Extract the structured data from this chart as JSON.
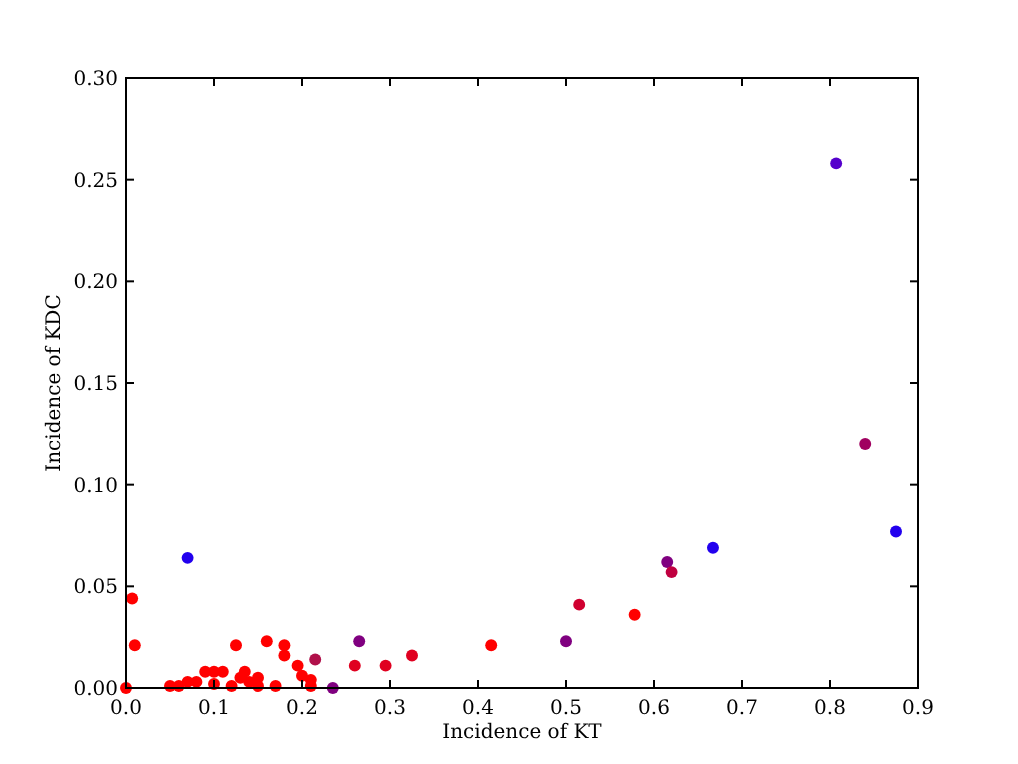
{
  "chart_data": {
    "type": "scatter",
    "xlabel": "Incidence of KT",
    "ylabel": "Incidence of KDC",
    "xlim": [
      0,
      0.9
    ],
    "ylim": [
      0,
      0.3
    ],
    "xticks": [
      {
        "value": 0,
        "label": "0.0"
      },
      0.1,
      0.2,
      0.3,
      0.4,
      0.5,
      0.6,
      0.7,
      0.8,
      0.9
    ],
    "yticks": [
      {
        "value": 0,
        "label": "0.00"
      },
      0.05,
      {
        "value": 0.1,
        "label": "0.10"
      },
      0.15,
      {
        "value": 0.2,
        "label": "0.20"
      },
      0.25,
      {
        "value": 0.3,
        "label": "0.30"
      }
    ],
    "grid": false,
    "marker": "circle",
    "x": [
      0.0,
      0.007,
      0.01,
      0.07,
      0.05,
      0.06,
      0.07,
      0.08,
      0.09,
      0.1,
      0.11,
      0.1,
      0.12,
      0.13,
      0.135,
      0.14,
      0.15,
      0.15,
      0.125,
      0.16,
      0.18,
      0.18,
      0.195,
      0.2,
      0.21,
      0.21,
      0.17,
      0.215,
      0.235,
      0.26,
      0.265,
      0.295,
      0.325,
      0.415,
      0.515,
      0.578,
      0.5,
      0.615,
      0.62,
      0.667,
      0.875,
      0.84,
      0.807
    ],
    "values": [
      0.0,
      0.044,
      0.021,
      0.064,
      0.001,
      0.001,
      0.003,
      0.003,
      0.008,
      0.008,
      0.008,
      0.002,
      0.001,
      0.005,
      0.008,
      0.003,
      0.005,
      0.001,
      0.021,
      0.023,
      0.021,
      0.016,
      0.011,
      0.006,
      0.004,
      0.001,
      0.001,
      0.014,
      0.0,
      0.011,
      0.023,
      0.011,
      0.016,
      0.021,
      0.041,
      0.036,
      0.023,
      0.062,
      0.057,
      0.069,
      0.077,
      0.12,
      0.258
    ],
    "colors": [
      "#ff0000",
      "#ff0000",
      "#ff0000",
      "#2200ee",
      "#ff0000",
      "#ff0000",
      "#ff0000",
      "#ff0000",
      "#ff0000",
      "#ff0000",
      "#ff0000",
      "#ff0000",
      "#ff0000",
      "#ff0000",
      "#ff0000",
      "#ff0000",
      "#ff0000",
      "#ff0000",
      "#ff0000",
      "#ff0000",
      "#ff0000",
      "#ff0000",
      "#ff0000",
      "#ff0000",
      "#ff0000",
      "#ff0000",
      "#ff0000",
      "#b0104a",
      "#800080",
      "#e00020",
      "#800080",
      "#e00020",
      "#e00020",
      "#ff0000",
      "#d00030",
      "#ff0000",
      "#800080",
      "#800080",
      "#c00040",
      "#2200ee",
      "#2200ee",
      "#a00060",
      "#5500cc"
    ]
  }
}
